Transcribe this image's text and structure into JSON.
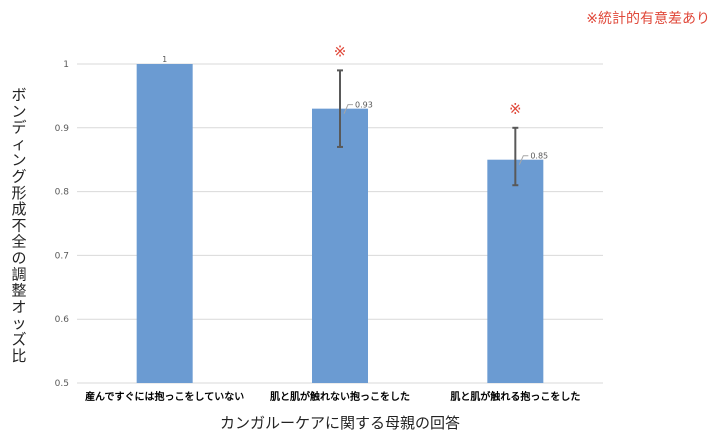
{
  "note": "※統計的有意差あり",
  "significance_mark": "※",
  "colors": {
    "bar": "#6b9bd2",
    "error": "#595959",
    "mark": "#e0483a",
    "grid": "#d9d9d9"
  },
  "chart_data": {
    "type": "bar",
    "title": "",
    "xlabel": "カンガルーケアに関する母親の回答",
    "ylabel": "ボンディング形成不全の調整オッズ比",
    "ylim": [
      0.5,
      1.0
    ],
    "yticks": [
      "0.5",
      "0.6",
      "0.7",
      "0.8",
      "0.9",
      "1"
    ],
    "categories": [
      "産んですぐには抱っこをしていない",
      "肌と肌が触れない抱っこをした",
      "肌と肌が触れる抱っこをした"
    ],
    "values": [
      1,
      0.93,
      0.85
    ],
    "value_labels": [
      "1",
      "0.93",
      "0.85"
    ],
    "error_low": [
      null,
      0.87,
      0.81
    ],
    "error_high": [
      null,
      0.99,
      0.9
    ],
    "significant": [
      false,
      true,
      true
    ],
    "grid": true,
    "legend": "none"
  }
}
